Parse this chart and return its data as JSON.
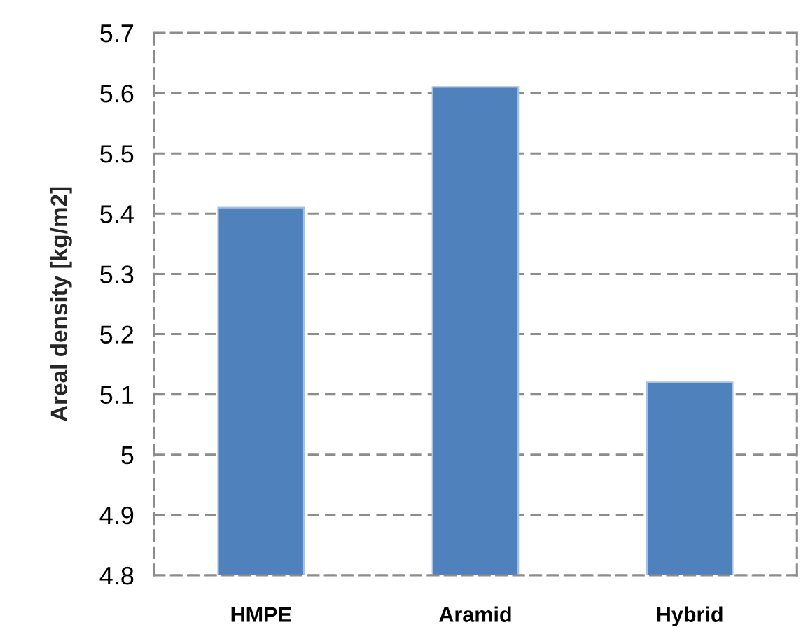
{
  "chart_data": {
    "type": "bar",
    "ylabel": "Areal density [kg/m2]",
    "categories": [
      "HMPE",
      "Aramid",
      "Hybrid"
    ],
    "values": [
      5.41,
      5.61,
      5.12
    ],
    "color": "#4f81bd",
    "ylim": [
      4.8,
      5.7
    ],
    "yticks": [
      4.8,
      4.9,
      5,
      5.1,
      5.2,
      5.3,
      5.4,
      5.5,
      5.6,
      5.7
    ],
    "grid": "y"
  }
}
